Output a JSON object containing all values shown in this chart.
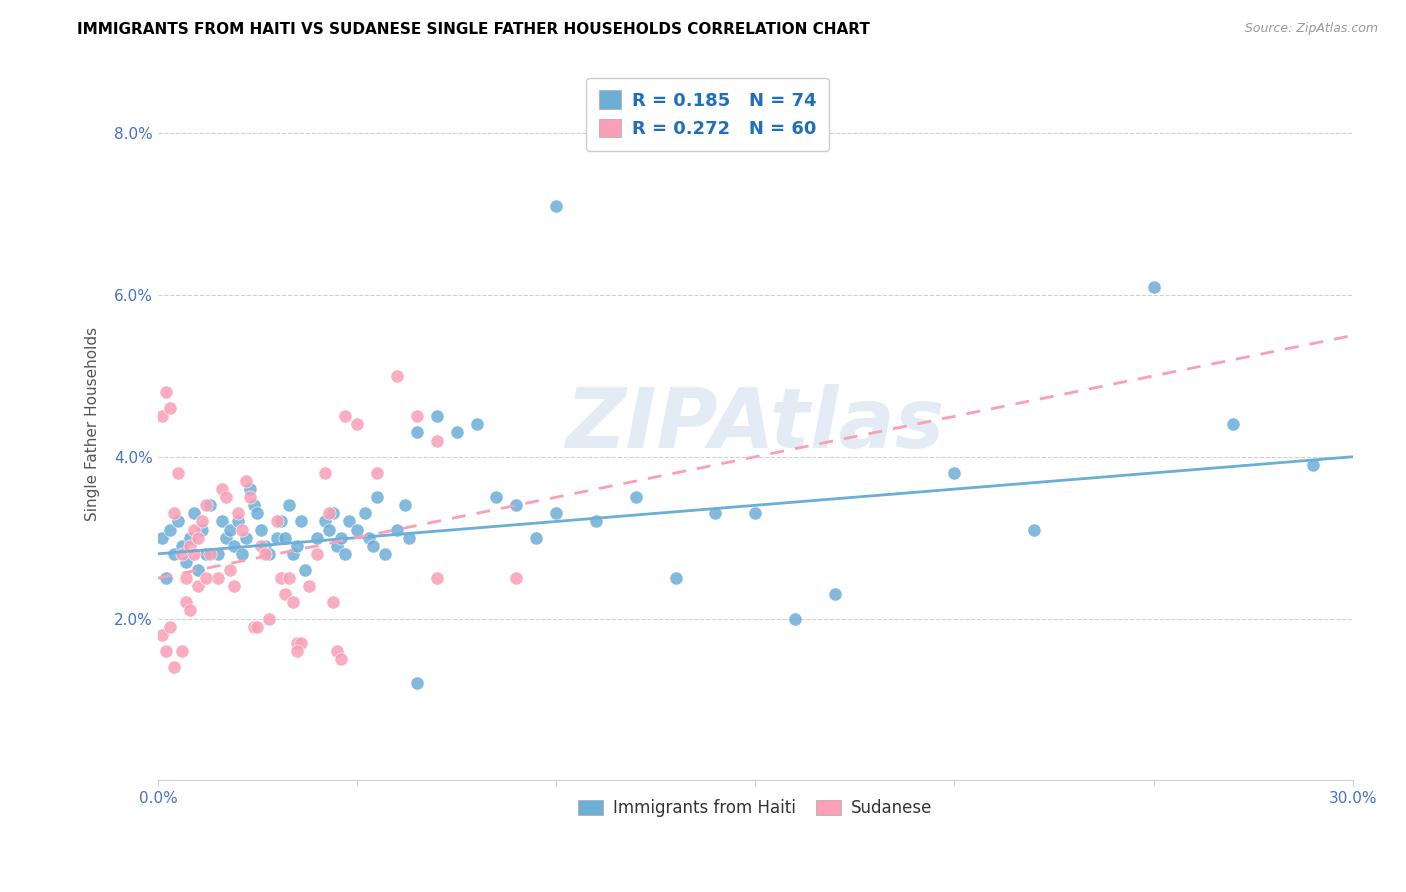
{
  "title": "IMMIGRANTS FROM HAITI VS SUDANESE SINGLE FATHER HOUSEHOLDS CORRELATION CHART",
  "source": "Source: ZipAtlas.com",
  "ylabel": "Single Father Households",
  "xlim": [
    0.0,
    0.3
  ],
  "ylim": [
    0.0,
    0.088
  ],
  "xticks": [
    0.0,
    0.05,
    0.1,
    0.15,
    0.2,
    0.25,
    0.3
  ],
  "yticks": [
    0.0,
    0.02,
    0.04,
    0.06,
    0.08
  ],
  "haiti_color": "#6baed6",
  "sudanese_color": "#fa9fb5",
  "haiti_R": "0.185",
  "haiti_N": "74",
  "sudanese_R": "0.272",
  "sudanese_N": "60",
  "watermark": "ZIPAtlas",
  "legend_haiti": "Immigrants from Haiti",
  "legend_sudanese": "Sudanese",
  "haiti_scatter": [
    [
      0.001,
      0.03
    ],
    [
      0.002,
      0.025
    ],
    [
      0.003,
      0.031
    ],
    [
      0.004,
      0.028
    ],
    [
      0.005,
      0.032
    ],
    [
      0.006,
      0.029
    ],
    [
      0.007,
      0.027
    ],
    [
      0.008,
      0.03
    ],
    [
      0.009,
      0.033
    ],
    [
      0.01,
      0.026
    ],
    [
      0.011,
      0.031
    ],
    [
      0.012,
      0.028
    ],
    [
      0.013,
      0.034
    ],
    [
      0.015,
      0.028
    ],
    [
      0.016,
      0.032
    ],
    [
      0.017,
      0.03
    ],
    [
      0.018,
      0.031
    ],
    [
      0.019,
      0.029
    ],
    [
      0.02,
      0.032
    ],
    [
      0.021,
      0.028
    ],
    [
      0.022,
      0.03
    ],
    [
      0.023,
      0.036
    ],
    [
      0.024,
      0.034
    ],
    [
      0.025,
      0.033
    ],
    [
      0.026,
      0.031
    ],
    [
      0.027,
      0.029
    ],
    [
      0.028,
      0.028
    ],
    [
      0.03,
      0.03
    ],
    [
      0.031,
      0.032
    ],
    [
      0.032,
      0.03
    ],
    [
      0.033,
      0.034
    ],
    [
      0.034,
      0.028
    ],
    [
      0.035,
      0.029
    ],
    [
      0.036,
      0.032
    ],
    [
      0.037,
      0.026
    ],
    [
      0.04,
      0.03
    ],
    [
      0.042,
      0.032
    ],
    [
      0.043,
      0.031
    ],
    [
      0.044,
      0.033
    ],
    [
      0.045,
      0.029
    ],
    [
      0.046,
      0.03
    ],
    [
      0.047,
      0.028
    ],
    [
      0.048,
      0.032
    ],
    [
      0.05,
      0.031
    ],
    [
      0.052,
      0.033
    ],
    [
      0.053,
      0.03
    ],
    [
      0.054,
      0.029
    ],
    [
      0.055,
      0.035
    ],
    [
      0.057,
      0.028
    ],
    [
      0.06,
      0.031
    ],
    [
      0.062,
      0.034
    ],
    [
      0.063,
      0.03
    ],
    [
      0.065,
      0.043
    ],
    [
      0.07,
      0.045
    ],
    [
      0.075,
      0.043
    ],
    [
      0.08,
      0.044
    ],
    [
      0.085,
      0.035
    ],
    [
      0.09,
      0.034
    ],
    [
      0.095,
      0.03
    ],
    [
      0.1,
      0.033
    ],
    [
      0.11,
      0.032
    ],
    [
      0.12,
      0.035
    ],
    [
      0.13,
      0.025
    ],
    [
      0.14,
      0.033
    ],
    [
      0.15,
      0.033
    ],
    [
      0.16,
      0.02
    ],
    [
      0.17,
      0.023
    ],
    [
      0.2,
      0.038
    ],
    [
      0.22,
      0.031
    ],
    [
      0.25,
      0.061
    ],
    [
      0.27,
      0.044
    ],
    [
      0.29,
      0.039
    ],
    [
      0.1,
      0.071
    ],
    [
      0.065,
      0.012
    ]
  ],
  "sudanese_scatter": [
    [
      0.001,
      0.045
    ],
    [
      0.002,
      0.048
    ],
    [
      0.003,
      0.046
    ],
    [
      0.004,
      0.033
    ],
    [
      0.005,
      0.038
    ],
    [
      0.006,
      0.028
    ],
    [
      0.007,
      0.025
    ],
    [
      0.008,
      0.029
    ],
    [
      0.009,
      0.031
    ],
    [
      0.01,
      0.03
    ],
    [
      0.011,
      0.032
    ],
    [
      0.012,
      0.034
    ],
    [
      0.013,
      0.028
    ],
    [
      0.015,
      0.025
    ],
    [
      0.016,
      0.036
    ],
    [
      0.017,
      0.035
    ],
    [
      0.018,
      0.026
    ],
    [
      0.019,
      0.024
    ],
    [
      0.02,
      0.033
    ],
    [
      0.021,
      0.031
    ],
    [
      0.022,
      0.037
    ],
    [
      0.023,
      0.035
    ],
    [
      0.024,
      0.019
    ],
    [
      0.025,
      0.019
    ],
    [
      0.026,
      0.029
    ],
    [
      0.027,
      0.028
    ],
    [
      0.028,
      0.02
    ],
    [
      0.03,
      0.032
    ],
    [
      0.031,
      0.025
    ],
    [
      0.032,
      0.023
    ],
    [
      0.033,
      0.025
    ],
    [
      0.034,
      0.022
    ],
    [
      0.035,
      0.017
    ],
    [
      0.036,
      0.017
    ],
    [
      0.038,
      0.024
    ],
    [
      0.04,
      0.028
    ],
    [
      0.042,
      0.038
    ],
    [
      0.043,
      0.033
    ],
    [
      0.044,
      0.022
    ],
    [
      0.045,
      0.016
    ],
    [
      0.046,
      0.015
    ],
    [
      0.047,
      0.045
    ],
    [
      0.05,
      0.044
    ],
    [
      0.055,
      0.038
    ],
    [
      0.06,
      0.05
    ],
    [
      0.065,
      0.045
    ],
    [
      0.07,
      0.042
    ],
    [
      0.001,
      0.018
    ],
    [
      0.002,
      0.016
    ],
    [
      0.003,
      0.019
    ],
    [
      0.004,
      0.014
    ],
    [
      0.006,
      0.016
    ],
    [
      0.007,
      0.022
    ],
    [
      0.008,
      0.021
    ],
    [
      0.009,
      0.028
    ],
    [
      0.01,
      0.024
    ],
    [
      0.012,
      0.025
    ],
    [
      0.035,
      0.016
    ],
    [
      0.07,
      0.025
    ],
    [
      0.09,
      0.025
    ]
  ],
  "haiti_line_x": [
    0.0,
    0.3
  ],
  "haiti_line_y": [
    0.028,
    0.04
  ],
  "sudanese_line_x": [
    0.0,
    0.3
  ],
  "sudanese_line_y": [
    0.025,
    0.055
  ],
  "text_blue": "#1f6fbe",
  "grid_color": "#d0d0d0",
  "tick_color": "#4472c4"
}
